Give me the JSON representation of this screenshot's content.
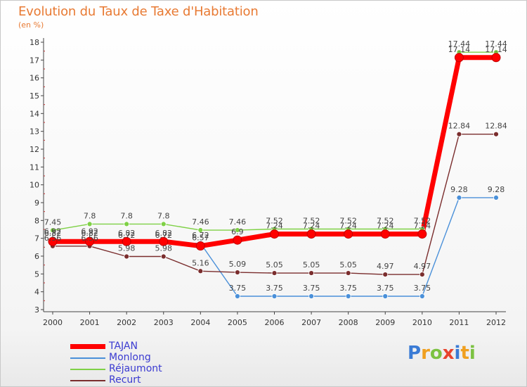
{
  "chart_data": {
    "type": "line",
    "title": "Evolution du Taux de Taxe d'Habitation",
    "subtitle": "(en %)",
    "x": [
      "2000",
      "2001",
      "2002",
      "2003",
      "2004",
      "2005",
      "2006",
      "2007",
      "2008",
      "2009",
      "2010",
      "2011",
      "2012"
    ],
    "ylim": [
      3,
      18
    ],
    "yticks": [
      3,
      4,
      5,
      6,
      7,
      8,
      9,
      10,
      11,
      12,
      13,
      14,
      15,
      16,
      17,
      18
    ],
    "grid": false,
    "legend_position": "bottom-left",
    "series": [
      {
        "name": "Réjaumont",
        "color": "#7fd146",
        "values": [
          7.45,
          7.8,
          7.8,
          7.8,
          7.46,
          7.46,
          7.52,
          7.52,
          7.52,
          7.52,
          7.52,
          17.44,
          17.44
        ],
        "labels": [
          "7.45",
          "7.8",
          "7.8",
          "7.8",
          "7.46",
          "7.46",
          "7.52",
          "7.52",
          "7.52",
          "7.52",
          "7.52",
          "17.44",
          "17.44"
        ]
      },
      {
        "name": "Monlong",
        "color": "#4a90d9",
        "values": [
          6.92,
          6.92,
          6.72,
          6.72,
          6.72,
          3.75,
          3.75,
          3.75,
          3.75,
          3.75,
          3.75,
          9.28,
          9.28
        ],
        "labels": [
          "6.92",
          "6.92",
          "6.72",
          "6.72",
          "6.72",
          "3.75",
          "3.75",
          "3.75",
          "3.75",
          "3.75",
          "3.75",
          "9.28",
          "9.28"
        ]
      },
      {
        "name": "Recurt",
        "color": "#7a2d2d",
        "values": [
          6.56,
          6.56,
          5.98,
          5.98,
          5.16,
          5.09,
          5.05,
          5.05,
          5.05,
          4.97,
          4.97,
          12.84,
          12.84
        ],
        "labels": [
          "6.56",
          "6.56",
          "5.98",
          "5.98",
          "5.16",
          "5.09",
          "5.05",
          "5.05",
          "5.05",
          "4.97",
          "4.97",
          "12.84",
          "12.84"
        ]
      },
      {
        "name": "TAJAN",
        "color": "#ff0000",
        "values": [
          6.82,
          6.82,
          6.82,
          6.82,
          6.57,
          6.9,
          7.24,
          7.24,
          7.24,
          7.24,
          7.24,
          17.14,
          17.14
        ],
        "labels": [
          "6.82",
          "6.82",
          "6.82",
          "6.82",
          "6.57",
          "6.9",
          "7.24",
          "7.24",
          "7.24",
          "7.24",
          "7.24",
          "17.14",
          "17.14"
        ]
      }
    ],
    "legend_order": [
      "TAJAN",
      "Monlong",
      "Réjaumont",
      "Recurt"
    ]
  },
  "logo": {
    "text": "Proxiti",
    "letters": [
      {
        "ch": "P",
        "color": "#3a7bd5"
      },
      {
        "ch": "r",
        "color": "#f0a020"
      },
      {
        "ch": "o",
        "color": "#7cc242"
      },
      {
        "ch": "x",
        "color": "#e8442e"
      },
      {
        "ch": "i",
        "color": "#3a7bd5"
      },
      {
        "ch": "t",
        "color": "#f0a020"
      },
      {
        "ch": "i",
        "color": "#7cc242"
      }
    ]
  }
}
